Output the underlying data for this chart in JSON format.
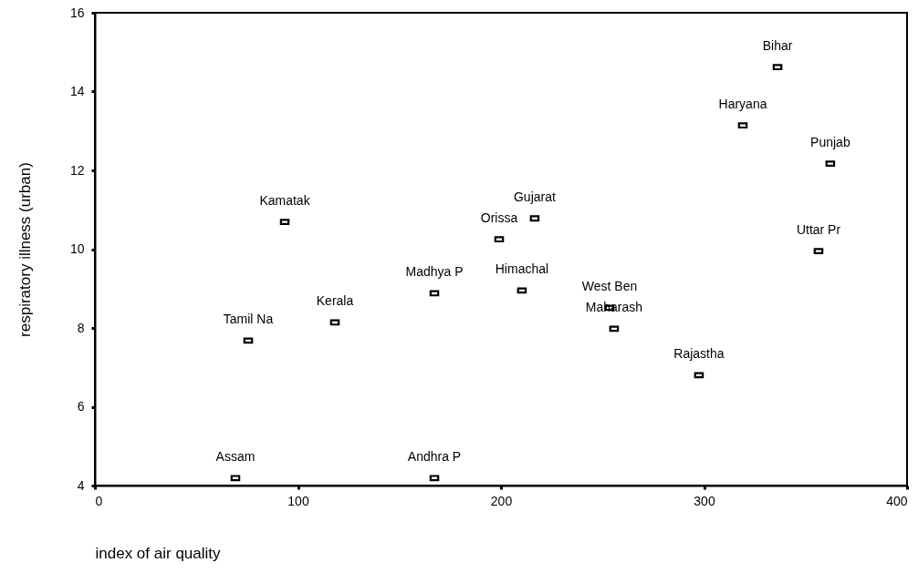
{
  "chart_data": {
    "type": "scatter",
    "xlabel": "index of air quality",
    "ylabel": "respiratory illness (urban)",
    "x": [
      93.5,
      167.2,
      118.2,
      75.5,
      69.2,
      167.2,
      336.2,
      319.1,
      362.2,
      216.6,
      199.1,
      356.4,
      210.3,
      253.5,
      255.7,
      297.5
    ],
    "series": [
      {
        "color": "#000000",
        "values": [
          10.69,
          8.88,
          8.14,
          7.68,
          4.19,
          4.19,
          14.62,
          13.14,
          12.17,
          10.78,
          10.25,
          9.95,
          8.95,
          8.51,
          7.98,
          6.8
        ]
      }
    ],
    "xlim": [
      0,
      400
    ],
    "xticks": [
      0,
      100,
      200,
      300,
      400
    ],
    "ylim": [
      4,
      16
    ],
    "yticks": [
      4,
      6,
      8,
      10,
      12,
      14,
      16
    ],
    "grid": false,
    "marker": "square",
    "annotations": [
      {
        "text": "Kamatak",
        "x": 93.5,
        "y": 10.69
      },
      {
        "text": "Madhya P",
        "x": 167.2,
        "y": 8.88
      },
      {
        "text": "Kerala",
        "x": 118.2,
        "y": 8.14
      },
      {
        "text": "Tamil Na",
        "x": 75.5,
        "y": 7.68
      },
      {
        "text": "Assam",
        "x": 69.2,
        "y": 4.19
      },
      {
        "text": "Andhra P",
        "x": 167.2,
        "y": 4.19
      },
      {
        "text": "Bihar",
        "x": 336.2,
        "y": 14.62
      },
      {
        "text": "Haryana",
        "x": 319.1,
        "y": 13.14
      },
      {
        "text": "Punjab",
        "x": 362.2,
        "y": 12.17
      },
      {
        "text": "Gujarat",
        "x": 216.6,
        "y": 10.78
      },
      {
        "text": "Orissa",
        "x": 199.1,
        "y": 10.25
      },
      {
        "text": "Uttar Pr",
        "x": 356.4,
        "y": 9.95
      },
      {
        "text": "Himachal",
        "x": 210.3,
        "y": 8.95
      },
      {
        "text": "West Ben",
        "x": 253.5,
        "y": 8.51
      },
      {
        "text": "Maharash",
        "x": 255.7,
        "y": 7.98
      },
      {
        "text": "Rajastha",
        "x": 297.5,
        "y": 6.8
      }
    ]
  }
}
